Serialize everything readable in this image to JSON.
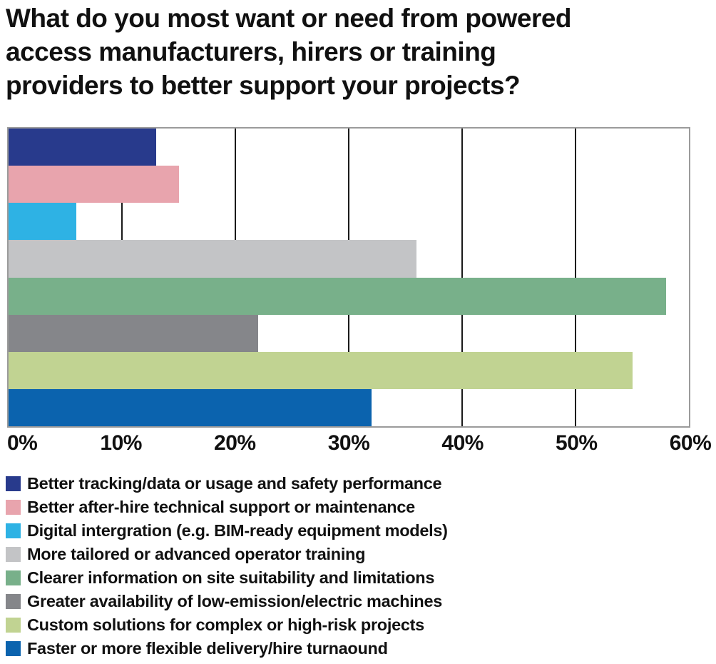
{
  "title": "What do you most want or need from powered access manufacturers, hirers or training providers to better support your projects?",
  "chart_data": {
    "type": "bar",
    "orientation": "horizontal",
    "title": "What do you most want or need from powered access manufacturers, hirers or training providers to better support your projects?",
    "xlabel": "",
    "ylabel": "",
    "xlim": [
      0,
      60
    ],
    "x_ticks": [
      "0%",
      "10%",
      "20%",
      "30%",
      "40%",
      "50%",
      "60%"
    ],
    "grid": "vertical",
    "gridline_color": "#1a1a1a",
    "plot_border_color": "#9b9b9b",
    "legend_position": "bottom",
    "categories": [
      "Better tracking/data or usage and safety performance",
      "Better after-hire technical support or maintenance",
      "Digital intergration (e.g. BIM-ready equipment models)",
      "More tailored or advanced operator training",
      "Clearer information on site suitability and limitations",
      "Greater availability of low-emission/electric machines",
      "Custom solutions for complex or high-risk projects",
      "Faster or more flexible delivery/hire turnaound"
    ],
    "values": [
      13,
      15,
      6,
      36,
      58,
      22,
      55,
      32
    ],
    "colors": [
      "#283a8c",
      "#e8a4ad",
      "#2eb2e4",
      "#c3c4c6",
      "#78b08a",
      "#85868a",
      "#c1d392",
      "#0b63ae"
    ]
  }
}
